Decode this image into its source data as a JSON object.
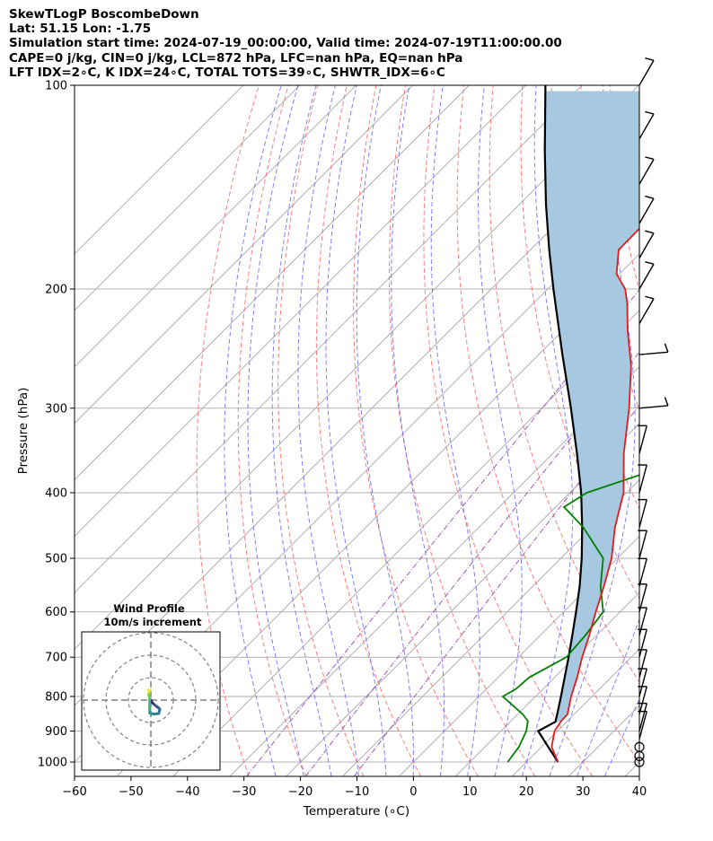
{
  "header": {
    "line1": "SkewTLogP BoscombeDown",
    "line2": "Lat: 51.15   Lon: -1.75",
    "line3": "Simulation start time: 2024-07-19_00:00:00, Valid time: 2024-07-19T11:00:00.00",
    "line4": "CAPE=0 j/kg, CIN=0 j/kg, LCL=872 hPa, LFC=nan hPa, EQ=nan hPa",
    "line5": "LFT IDX=2∘C, K IDX=24∘C, TOTAL TOTS=39∘C, SHWTR_IDX=6∘C"
  },
  "colors": {
    "temperature": "#e41a1c",
    "dewpoint": "#008000",
    "parcel": "#000000",
    "cape_fill": "#a6c8e0",
    "dry_adiabat": "#ff6666",
    "moist_adiabat": "#6a6aff",
    "mixing_ratio": "#9b59b6",
    "isotherm": "#b0b0b0"
  },
  "chart_data": {
    "type": "line",
    "title": "SkewTLogP BoscombeDown",
    "xlabel": "Temperature (∘C)",
    "ylabel": "Pressure (hPa)",
    "xlim": [
      -60,
      40
    ],
    "ylim": [
      1050,
      100
    ],
    "x_ticks": [
      -60,
      -50,
      -40,
      -30,
      -20,
      -10,
      0,
      10,
      20,
      30,
      40
    ],
    "x_tick_labels": [
      "−60",
      "−50",
      "−40",
      "−30",
      "−20",
      "−10",
      "0",
      "10",
      "20",
      "30",
      "40"
    ],
    "y_ticks": [
      1000,
      900,
      800,
      700,
      600,
      500,
      400,
      300,
      200,
      100
    ],
    "y_tick_labels": [
      "1000",
      "900",
      "800",
      "700",
      "600",
      "500",
      "400",
      "300",
      "200",
      "100"
    ],
    "series": [
      {
        "name": "Temperature",
        "pressure": [
          1000,
          950,
          900,
          870,
          850,
          800,
          750,
          700,
          650,
          600,
          550,
          500,
          450,
          400,
          350,
          300,
          260,
          230,
          210,
          200,
          190,
          175,
          160,
          150,
          140,
          130,
          120,
          110,
          100
        ],
        "temperature": [
          25.6,
          21.8,
          19.5,
          18.9,
          18.8,
          16.3,
          14.0,
          11.3,
          8.7,
          5.7,
          2.6,
          -1.0,
          -5.9,
          -10.5,
          -17.4,
          -24.5,
          -31.6,
          -38.6,
          -43.4,
          -46.3,
          -50.5,
          -54.4,
          -54.5,
          -53.8,
          -52.0,
          -49.5,
          -48.5,
          -47.2,
          -45.5
        ]
      },
      {
        "name": "Dewpoint",
        "pressure": [
          1000,
          950,
          900,
          870,
          850,
          800,
          780,
          750,
          700,
          650,
          600,
          550,
          500,
          450,
          420,
          400,
          370,
          350,
          330,
          300,
          280,
          260,
          230,
          210,
          200,
          180,
          165,
          150,
          130,
          100
        ],
        "temperature": [
          16.7,
          16.0,
          14.5,
          13.0,
          10.9,
          4.2,
          5.2,
          5.5,
          8.5,
          8.0,
          7.0,
          2.0,
          -2.5,
          -11.5,
          -18.5,
          -17.0,
          -9.0,
          -1.5,
          -1.5,
          -5.5,
          -10.5,
          -11.0,
          -15.0,
          -19.5,
          -22.3,
          -25.5,
          -25.5,
          -25.0,
          -32.5,
          -40.5
        ]
      },
      {
        "name": "Parcel",
        "pressure": [
          1000,
          950,
          900,
          872,
          850,
          800,
          750,
          700,
          650,
          600,
          550,
          500,
          450,
          400,
          350,
          300,
          250,
          200,
          175,
          150,
          125,
          100
        ],
        "temperature": [
          25.6,
          21.2,
          16.6,
          18.0,
          17.0,
          14.5,
          11.8,
          8.9,
          5.7,
          2.2,
          -1.7,
          -6.3,
          -11.7,
          -18.0,
          -25.7,
          -34.8,
          -45.8,
          -59.0,
          -66.7,
          -75.3,
          -85.0,
          -96.5
        ]
      }
    ],
    "wind_barbs": {
      "pressure": [
        1000,
        980,
        950,
        925,
        900,
        850,
        800,
        750,
        700,
        650,
        600,
        550,
        500,
        450,
        400,
        350,
        300,
        250,
        225,
        200,
        180,
        160,
        140,
        120,
        100
      ]
    },
    "hodograph": {
      "title": "Wind Profile",
      "subtitle": "10m/s increment",
      "u": [
        0.0,
        0.5,
        1.5,
        2.5,
        3.5,
        4.0,
        3.5,
        1.5,
        0.0,
        -0.5,
        -0.5,
        -0.5,
        -0.5,
        -1.0,
        -0.8,
        -0.5,
        -0.5,
        -1.2
      ],
      "v": [
        0.0,
        -1.0,
        -2.0,
        -2.8,
        -3.5,
        -4.2,
        -6.0,
        -6.2,
        -6.0,
        -5.8,
        -4.0,
        -2.0,
        1.0,
        2.5,
        3.0,
        4.0,
        4.5,
        4.5
      ]
    }
  }
}
